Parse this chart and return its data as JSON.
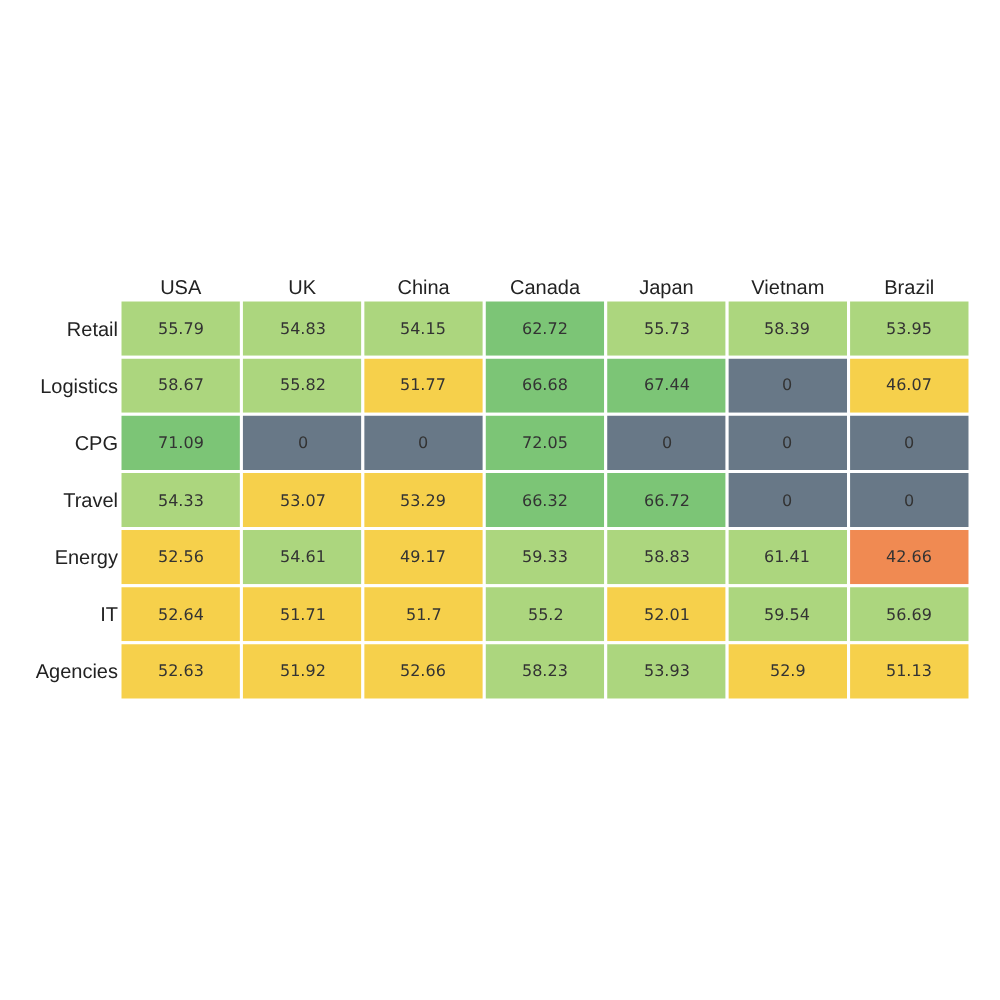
{
  "chart_data": {
    "type": "heatmap",
    "categories": [
      "USA",
      "UK",
      "China",
      "Canada",
      "Japan",
      "Vietnam",
      "Brazil"
    ],
    "y_categories": [
      "Retail",
      "Logistics",
      "CPG",
      "Travel",
      "Energy",
      "IT",
      "Agencies"
    ],
    "cells": [
      [
        55.79,
        54.83,
        54.15,
        62.72,
        55.73,
        58.39,
        53.95
      ],
      [
        58.67,
        55.82,
        51.77,
        66.68,
        67.44,
        0,
        46.07
      ],
      [
        71.09,
        0,
        0,
        72.05,
        0,
        0,
        0
      ],
      [
        54.33,
        53.07,
        53.29,
        66.32,
        66.72,
        0,
        0
      ],
      [
        52.56,
        54.61,
        49.17,
        59.33,
        58.83,
        61.41,
        42.66
      ],
      [
        52.64,
        51.71,
        51.7,
        55.2,
        52.01,
        59.54,
        56.69
      ],
      [
        52.63,
        51.92,
        52.66,
        58.23,
        53.93,
        52.9,
        51.13
      ]
    ],
    "colors": [
      [
        "#acd67e",
        "#acd67e",
        "#acd67e",
        "#7cc576",
        "#acd67e",
        "#acd67e",
        "#acd67e"
      ],
      [
        "#acd67e",
        "#acd67e",
        "#f6d04b",
        "#7cc576",
        "#7cc576",
        "#687887",
        "#f6d04b"
      ],
      [
        "#7cc576",
        "#687887",
        "#687887",
        "#7cc576",
        "#687887",
        "#687887",
        "#687887"
      ],
      [
        "#acd67e",
        "#f6d04b",
        "#f6d04b",
        "#7cc576",
        "#7cc576",
        "#687887",
        "#687887"
      ],
      [
        "#f6d04b",
        "#acd67e",
        "#f6d04b",
        "#acd67e",
        "#acd67e",
        "#acd67e",
        "#f08a52"
      ],
      [
        "#f6d04b",
        "#f6d04b",
        "#f6d04b",
        "#acd67e",
        "#f6d04b",
        "#acd67e",
        "#acd67e"
      ],
      [
        "#f6d04b",
        "#f6d04b",
        "#f6d04b",
        "#acd67e",
        "#acd67e",
        "#f6d04b",
        "#f6d04b"
      ]
    ],
    "data_labels": true
  }
}
